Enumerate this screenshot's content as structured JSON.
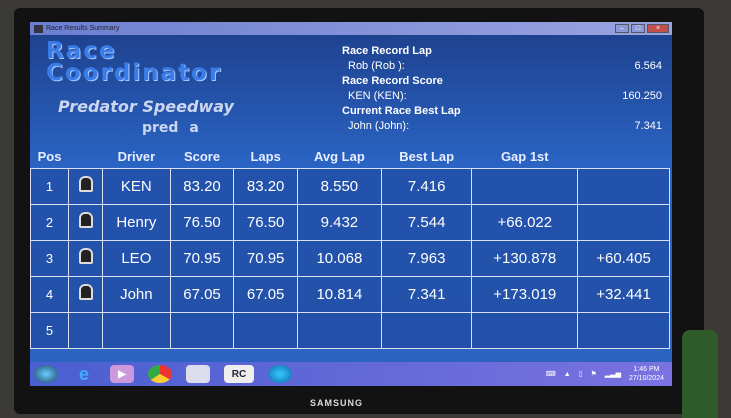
{
  "window": {
    "title": "Race Results Summary"
  },
  "logo": {
    "line1": "Race",
    "line2": "Coordinator"
  },
  "track": "Predator Speedway",
  "heat": "pred a",
  "records": [
    {
      "heading": "Race Record Lap",
      "holder": "Rob  (Rob ):",
      "value": "6.564"
    },
    {
      "heading": "Race Record Score",
      "holder": "KEN  (KEN):",
      "value": "160.250"
    },
    {
      "heading": "Current Race Best Lap",
      "holder": "John  (John):",
      "value": "7.341"
    }
  ],
  "table": {
    "headers": [
      "Pos",
      "",
      "Driver",
      "Score",
      "Laps",
      "Avg Lap",
      "Best Lap",
      "Gap 1st",
      ""
    ],
    "rows": [
      {
        "pos": "1",
        "driver": "KEN",
        "score": "83.20",
        "laps": "83.20",
        "avg": "8.550",
        "best": "7.416",
        "gap1": "",
        "gapn": ""
      },
      {
        "pos": "2",
        "driver": "Henry",
        "score": "76.50",
        "laps": "76.50",
        "avg": "9.432",
        "best": "7.544",
        "gap1": "+66.022",
        "gapn": ""
      },
      {
        "pos": "3",
        "driver": "LEO",
        "score": "70.95",
        "laps": "70.95",
        "avg": "10.068",
        "best": "7.963",
        "gap1": "+130.878",
        "gapn": "+60.405"
      },
      {
        "pos": "4",
        "driver": "John",
        "score": "67.05",
        "laps": "67.05",
        "avg": "10.814",
        "best": "7.341",
        "gap1": "+173.019",
        "gapn": "+32.441"
      },
      {
        "pos": "5",
        "driver": "",
        "score": "",
        "laps": "",
        "avg": "",
        "best": "",
        "gap1": "",
        "gapn": ""
      }
    ]
  },
  "taskbar": {
    "apps": [
      "start-icon",
      "internet-explorer-icon",
      "media-player-icon",
      "chrome-icon",
      "file-explorer-icon",
      "race-coordinator-icon",
      "edge-icon"
    ],
    "rc_label": "RC",
    "time": "1:46 PM",
    "date": "27/10/2024"
  },
  "monitor_brand": "SAMSUNG"
}
